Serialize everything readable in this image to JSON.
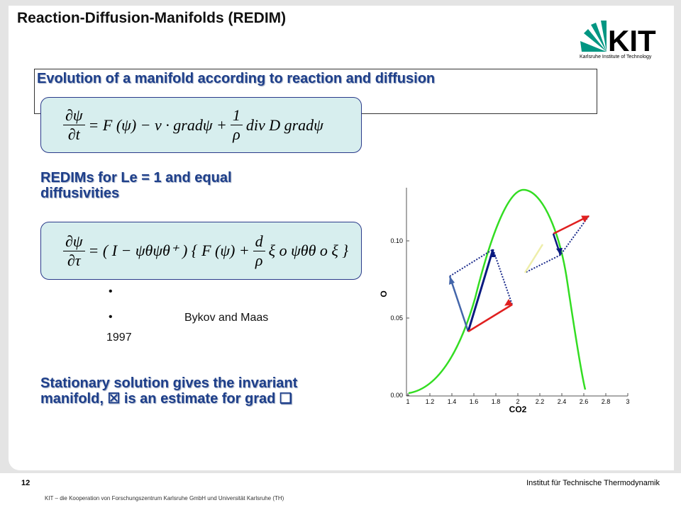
{
  "header": {
    "title": "Reaction-Diffusion-Manifolds (REDIM)",
    "logo": "KIT",
    "logo_subtitle": "Karlsruhe Institute of Technology"
  },
  "section1": {
    "heading": "Evolution of a manifold according to reaction and diffusion",
    "equation": {
      "lhs_num": "∂ψ",
      "lhs_den": "∂t",
      "mid": "= F (ψ) − v · gradψ +",
      "frac_num": "1",
      "frac_den": "ρ",
      "rhs": "div D gradψ"
    }
  },
  "section2": {
    "heading": "REDIMs for Le = 1 and equal diffusivities",
    "equation": {
      "lhs_num": "∂ψ",
      "lhs_den": "∂τ",
      "mid": "= ( I − ψθψθ⁺ ) { F (ψ) +",
      "frac_num": "d",
      "frac_den": "ρ",
      "rhs": "ξ o ψθθ o ξ }"
    },
    "bullets": [
      "•",
      "•",
      "Bykov and Maas",
      "1997"
    ]
  },
  "conclusion": "Stationary solution gives the invariant manifold, ☒ is an estimate for grad ❑",
  "plot": {
    "xlabel": "CO2",
    "ylabel": "O",
    "xticks": [
      "1",
      "1.2",
      "1.4",
      "1.6",
      "1.8",
      "2",
      "2.2",
      "2.4",
      "2.6",
      "2.8",
      "3"
    ],
    "yticks": [
      "0.00",
      "0.05",
      "0.10"
    ]
  },
  "footer": {
    "page": "12",
    "institute": "Institut für Technische Thermodynamik",
    "note": "KIT – die Kooperation von Forschungszentrum Karlsruhe GmbH und Universität Karlsruhe (TH)"
  }
}
